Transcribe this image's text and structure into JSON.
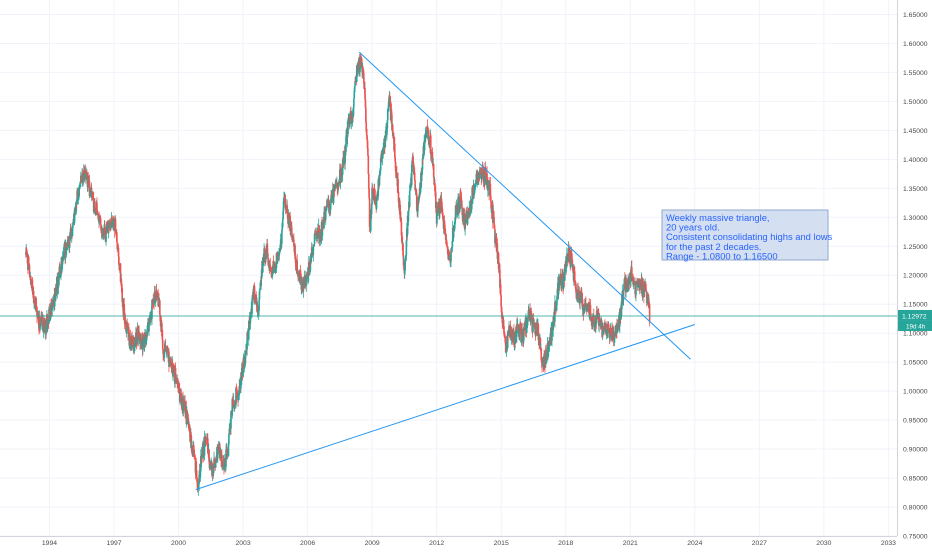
{
  "chart_data": {
    "type": "candlestick",
    "title": "",
    "xlabel": "",
    "ylabel": "",
    "x_range": [
      1991.7,
      2033.4
    ],
    "ylim": [
      0.75,
      1.675
    ],
    "x_ticks": [
      "1994",
      "1997",
      "2000",
      "2003",
      "2006",
      "2009",
      "2012",
      "2015",
      "2018",
      "2021",
      "2024",
      "2027",
      "2030",
      "2033"
    ],
    "x_tick_years": [
      1994,
      1997,
      2000,
      2003,
      2006,
      2009,
      2012,
      2015,
      2018,
      2021,
      2024,
      2027,
      2030,
      2033
    ],
    "y_ticks": [
      "1.65000",
      "1.60000",
      "1.55000",
      "1.50000",
      "1.45000",
      "1.40000",
      "1.35000",
      "1.30000",
      "1.25000",
      "1.20000",
      "1.15000",
      "1.10000",
      "1.05000",
      "1.00000",
      "0.95000",
      "0.90000",
      "0.85000",
      "0.80000",
      "0.75000"
    ],
    "y_tick_values": [
      1.65,
      1.6,
      1.55,
      1.5,
      1.45,
      1.4,
      1.35,
      1.3,
      1.25,
      1.2,
      1.15,
      1.1,
      1.05,
      1.0,
      0.95,
      0.9,
      0.85,
      0.8,
      0.75
    ],
    "grid": true,
    "colors": {
      "up": "#26a69a",
      "down": "#ef5350",
      "line": "#2196f3",
      "current_line": "#26a69a",
      "grid": "#f0f3fa",
      "annotation_fill": "#c5d6ec",
      "annotation_text": "#2962ff"
    },
    "price_path": [
      [
        1992.9,
        1.24
      ],
      [
        1993.1,
        1.2
      ],
      [
        1993.3,
        1.16
      ],
      [
        1993.5,
        1.12
      ],
      [
        1993.8,
        1.11
      ],
      [
        1994.1,
        1.14
      ],
      [
        1994.4,
        1.19
      ],
      [
        1994.7,
        1.24
      ],
      [
        1995.0,
        1.27
      ],
      [
        1995.2,
        1.31
      ],
      [
        1995.4,
        1.36
      ],
      [
        1995.6,
        1.38
      ],
      [
        1995.8,
        1.36
      ],
      [
        1996.0,
        1.33
      ],
      [
        1996.3,
        1.3
      ],
      [
        1996.6,
        1.27
      ],
      [
        1996.9,
        1.3
      ],
      [
        1997.1,
        1.28
      ],
      [
        1997.3,
        1.2
      ],
      [
        1997.5,
        1.12
      ],
      [
        1997.7,
        1.09
      ],
      [
        1997.9,
        1.08
      ],
      [
        1998.1,
        1.1
      ],
      [
        1998.3,
        1.08
      ],
      [
        1998.5,
        1.09
      ],
      [
        1998.7,
        1.13
      ],
      [
        1998.9,
        1.17
      ],
      [
        1999.1,
        1.15
      ],
      [
        1999.3,
        1.07
      ],
      [
        1999.6,
        1.05
      ],
      [
        1999.9,
        1.02
      ],
      [
        2000.1,
        0.99
      ],
      [
        2000.3,
        0.97
      ],
      [
        2000.5,
        0.93
      ],
      [
        2000.7,
        0.89
      ],
      [
        2000.9,
        0.84
      ],
      [
        2001.1,
        0.89
      ],
      [
        2001.3,
        0.92
      ],
      [
        2001.5,
        0.86
      ],
      [
        2001.7,
        0.88
      ],
      [
        2001.9,
        0.9
      ],
      [
        2002.1,
        0.87
      ],
      [
        2002.3,
        0.9
      ],
      [
        2002.5,
        0.98
      ],
      [
        2002.8,
        1.0
      ],
      [
        2003.1,
        1.06
      ],
      [
        2003.3,
        1.12
      ],
      [
        2003.5,
        1.17
      ],
      [
        2003.7,
        1.14
      ],
      [
        2003.9,
        1.22
      ],
      [
        2004.1,
        1.25
      ],
      [
        2004.3,
        1.2
      ],
      [
        2004.5,
        1.22
      ],
      [
        2004.8,
        1.27
      ],
      [
        2004.9,
        1.33
      ],
      [
        2005.1,
        1.3
      ],
      [
        2005.3,
        1.27
      ],
      [
        2005.5,
        1.21
      ],
      [
        2005.8,
        1.18
      ],
      [
        2006.0,
        1.2
      ],
      [
        2006.2,
        1.24
      ],
      [
        2006.4,
        1.28
      ],
      [
        2006.6,
        1.27
      ],
      [
        2006.9,
        1.32
      ],
      [
        2007.1,
        1.33
      ],
      [
        2007.3,
        1.35
      ],
      [
        2007.5,
        1.37
      ],
      [
        2007.7,
        1.4
      ],
      [
        2007.9,
        1.46
      ],
      [
        2008.1,
        1.48
      ],
      [
        2008.3,
        1.56
      ],
      [
        2008.5,
        1.57
      ],
      [
        2008.6,
        1.55
      ],
      [
        2008.8,
        1.4
      ],
      [
        2008.9,
        1.27
      ],
      [
        2009.0,
        1.35
      ],
      [
        2009.2,
        1.32
      ],
      [
        2009.4,
        1.4
      ],
      [
        2009.6,
        1.43
      ],
      [
        2009.8,
        1.5
      ],
      [
        2010.0,
        1.43
      ],
      [
        2010.2,
        1.35
      ],
      [
        2010.4,
        1.25
      ],
      [
        2010.5,
        1.2
      ],
      [
        2010.7,
        1.32
      ],
      [
        2010.9,
        1.4
      ],
      [
        2011.1,
        1.31
      ],
      [
        2011.3,
        1.38
      ],
      [
        2011.5,
        1.45
      ],
      [
        2011.7,
        1.43
      ],
      [
        2011.9,
        1.36
      ],
      [
        2012.0,
        1.3
      ],
      [
        2012.2,
        1.33
      ],
      [
        2012.4,
        1.26
      ],
      [
        2012.6,
        1.22
      ],
      [
        2012.8,
        1.29
      ],
      [
        2012.9,
        1.31
      ],
      [
        2013.1,
        1.33
      ],
      [
        2013.3,
        1.29
      ],
      [
        2013.5,
        1.3
      ],
      [
        2013.7,
        1.35
      ],
      [
        2013.9,
        1.37
      ],
      [
        2014.1,
        1.38
      ],
      [
        2014.3,
        1.37
      ],
      [
        2014.5,
        1.34
      ],
      [
        2014.7,
        1.27
      ],
      [
        2014.9,
        1.22
      ],
      [
        2015.0,
        1.15
      ],
      [
        2015.2,
        1.07
      ],
      [
        2015.4,
        1.11
      ],
      [
        2015.6,
        1.09
      ],
      [
        2015.8,
        1.11
      ],
      [
        2016.0,
        1.09
      ],
      [
        2016.3,
        1.13
      ],
      [
        2016.5,
        1.11
      ],
      [
        2016.7,
        1.11
      ],
      [
        2016.9,
        1.05
      ],
      [
        2017.1,
        1.06
      ],
      [
        2017.3,
        1.09
      ],
      [
        2017.5,
        1.14
      ],
      [
        2017.7,
        1.19
      ],
      [
        2017.9,
        1.19
      ],
      [
        2018.1,
        1.24
      ],
      [
        2018.3,
        1.22
      ],
      [
        2018.5,
        1.17
      ],
      [
        2018.7,
        1.16
      ],
      [
        2018.9,
        1.14
      ],
      [
        2019.1,
        1.14
      ],
      [
        2019.3,
        1.12
      ],
      [
        2019.5,
        1.13
      ],
      [
        2019.7,
        1.1
      ],
      [
        2019.9,
        1.11
      ],
      [
        2020.1,
        1.1
      ],
      [
        2020.3,
        1.09
      ],
      [
        2020.5,
        1.12
      ],
      [
        2020.7,
        1.18
      ],
      [
        2020.9,
        1.18
      ],
      [
        2021.1,
        1.21
      ],
      [
        2021.2,
        1.17
      ],
      [
        2021.4,
        1.19
      ],
      [
        2021.6,
        1.18
      ],
      [
        2021.8,
        1.16
      ],
      [
        2021.9,
        1.13
      ]
    ],
    "trendlines": [
      {
        "name": "descending",
        "from": [
          2008.4,
          1.585
        ],
        "to": [
          2023.8,
          1.055
        ]
      },
      {
        "name": "ascending",
        "from": [
          2000.8,
          0.83
        ],
        "to": [
          2024.0,
          1.115
        ]
      }
    ],
    "current_price": 1.12972,
    "current_price_label": "1.12972",
    "time_left_label": "19d 4h",
    "annotation": {
      "lines": [
        "Weekly massive triangle,",
        "20 years old.",
        "Consistent consolidating highs and lows",
        "for the past 2 decades.",
        "Range - 1.0800 to 1.16500"
      ]
    }
  }
}
